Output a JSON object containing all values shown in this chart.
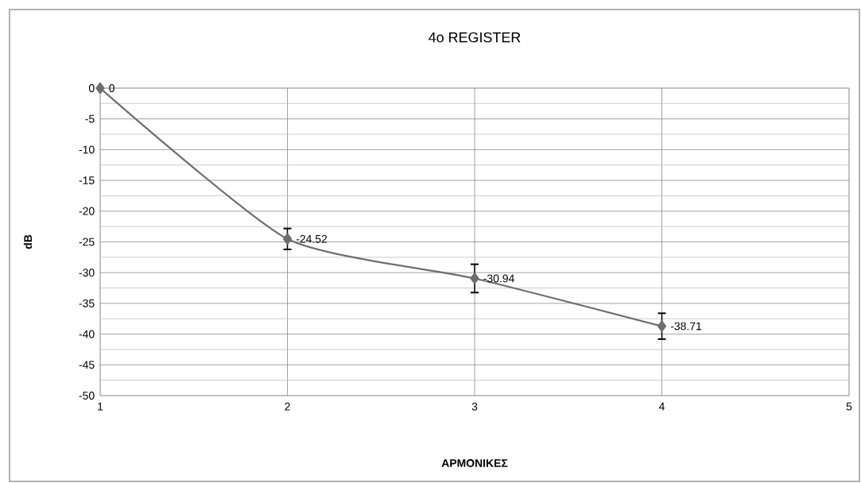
{
  "chart_data": {
    "type": "line",
    "title": "4o REGISTER",
    "xlabel": "ΑΡΜΟΝΙΚΕΣ",
    "ylabel": "dB",
    "x": [
      1,
      2,
      3,
      4
    ],
    "values": [
      0,
      -24.52,
      -30.94,
      -38.71
    ],
    "errors": [
      null,
      1.7,
      2.3,
      2.1
    ],
    "color": "#6e6e6e",
    "marker": "diamond",
    "line_style": "solid",
    "data_labels": true,
    "grid": true,
    "xlim": [
      1,
      5
    ],
    "xticks": [
      1,
      2,
      3,
      4,
      5
    ],
    "ylim": [
      -50,
      0
    ],
    "yticks": [
      0,
      -5,
      -10,
      -15,
      -20,
      -25,
      -30,
      -35,
      -40,
      -45,
      -50
    ]
  }
}
